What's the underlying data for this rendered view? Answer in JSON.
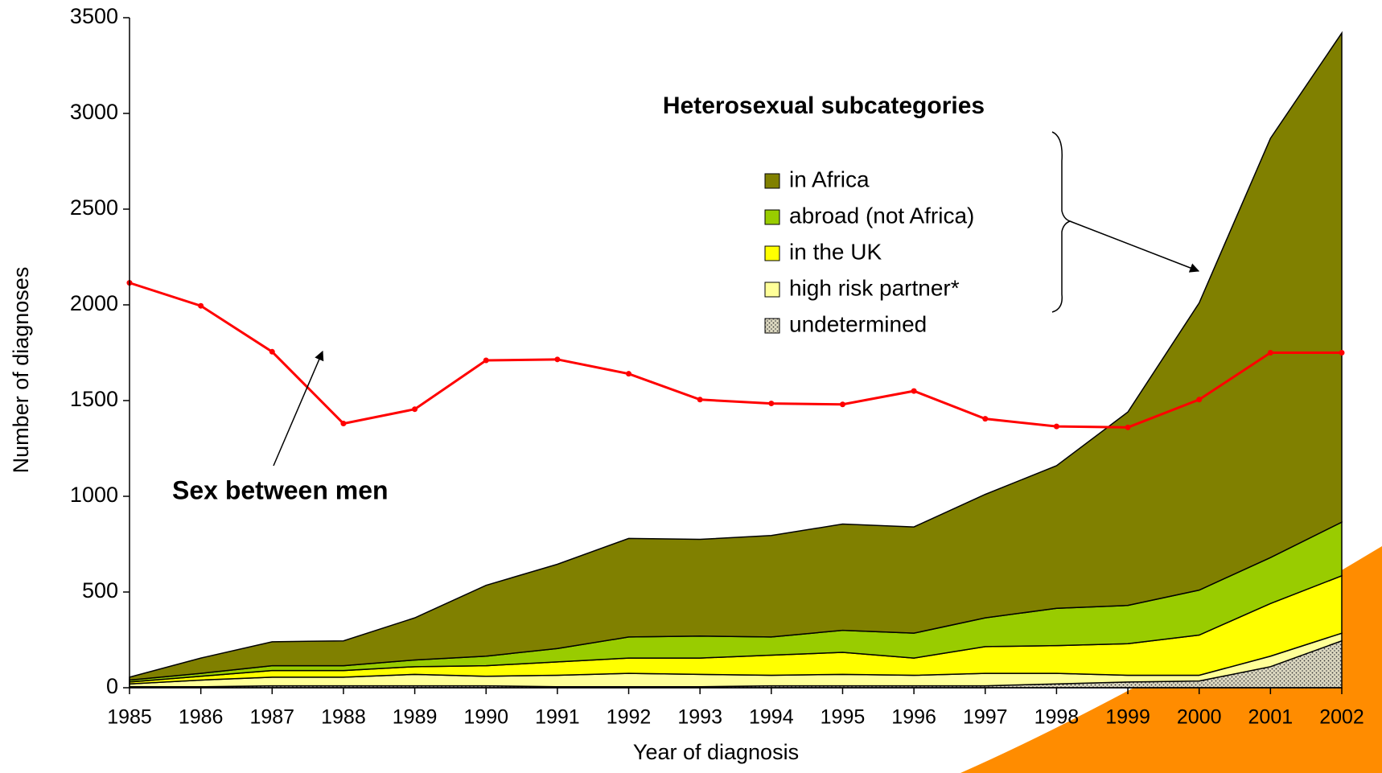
{
  "chart_data": {
    "type": "area",
    "categories": [
      "1985",
      "1986",
      "1987",
      "1988",
      "1989",
      "1990",
      "1991",
      "1992",
      "1993",
      "1994",
      "1995",
      "1996",
      "1997",
      "1998",
      "1999",
      "2000",
      "2001",
      "2002"
    ],
    "series": [
      {
        "name": "in Africa",
        "color": "#808000",
        "values": [
          15,
          80,
          125,
          130,
          220,
          370,
          440,
          515,
          505,
          530,
          555,
          555,
          645,
          745,
          1010,
          1500,
          2190,
          2555
        ]
      },
      {
        "name": "abroad (not Africa)",
        "color": "#99cc00",
        "values": [
          10,
          15,
          25,
          25,
          35,
          50,
          70,
          110,
          115,
          95,
          115,
          130,
          150,
          195,
          200,
          235,
          240,
          280
        ]
      },
      {
        "name": "in the UK",
        "color": "#ffff00",
        "values": [
          10,
          20,
          35,
          35,
          40,
          55,
          70,
          80,
          85,
          105,
          115,
          90,
          140,
          145,
          165,
          210,
          275,
          300
        ]
      },
      {
        "name": "high risk partner*",
        "color": "#ffff99",
        "values": [
          15,
          35,
          45,
          45,
          60,
          50,
          60,
          70,
          65,
          55,
          60,
          55,
          65,
          55,
          35,
          30,
          55,
          40
        ]
      },
      {
        "name": "undetermined",
        "color": "#dcd8c0",
        "pattern": "dotted",
        "values": [
          5,
          5,
          10,
          10,
          10,
          10,
          5,
          5,
          5,
          10,
          10,
          10,
          10,
          20,
          30,
          35,
          110,
          245
        ]
      },
      {
        "name": "Sex between men",
        "type": "line",
        "color": "#ff0000",
        "values": [
          2115,
          1995,
          1755,
          1380,
          1455,
          1710,
          1715,
          1640,
          1505,
          1485,
          1480,
          1550,
          1405,
          1365,
          1360,
          1505,
          1750,
          1750
        ]
      }
    ],
    "legend_title": "Heterosexual subcategories",
    "xlabel": "Year of diagnosis",
    "ylabel": "Number of diagnoses",
    "ylim": [
      0,
      3500
    ],
    "yticks": [
      0,
      500,
      1000,
      1500,
      2000,
      2500,
      3000,
      3500
    ]
  }
}
